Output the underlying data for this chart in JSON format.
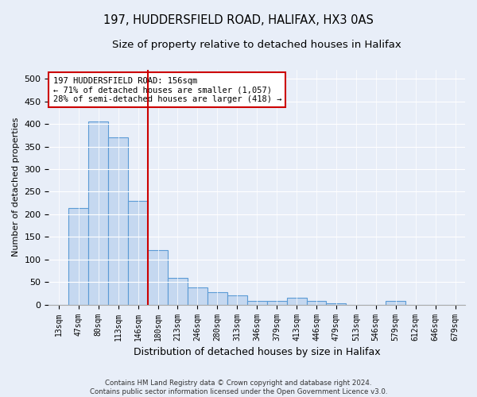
{
  "title_line1": "197, HUDDERSFIELD ROAD, HALIFAX, HX3 0AS",
  "title_line2": "Size of property relative to detached houses in Halifax",
  "xlabel": "Distribution of detached houses by size in Halifax",
  "ylabel": "Number of detached properties",
  "categories": [
    "13sqm",
    "47sqm",
    "80sqm",
    "113sqm",
    "146sqm",
    "180sqm",
    "213sqm",
    "246sqm",
    "280sqm",
    "313sqm",
    "346sqm",
    "379sqm",
    "413sqm",
    "446sqm",
    "479sqm",
    "513sqm",
    "546sqm",
    "579sqm",
    "612sqm",
    "646sqm",
    "679sqm"
  ],
  "values": [
    0,
    213,
    405,
    370,
    230,
    120,
    60,
    38,
    28,
    20,
    8,
    8,
    15,
    8,
    3,
    0,
    0,
    8,
    0,
    0,
    0
  ],
  "bar_color": "#c5d8f0",
  "bar_edge_color": "#5b9bd5",
  "vline_color": "#cc0000",
  "vline_index": 4.5,
  "annotation_text": "197 HUDDERSFIELD ROAD: 156sqm\n← 71% of detached houses are smaller (1,057)\n28% of semi-detached houses are larger (418) →",
  "annotation_box_color": "#cc0000",
  "ylim": [
    0,
    520
  ],
  "yticks": [
    0,
    50,
    100,
    150,
    200,
    250,
    300,
    350,
    400,
    450,
    500
  ],
  "footnote": "Contains HM Land Registry data © Crown copyright and database right 2024.\nContains public sector information licensed under the Open Government Licence v3.0.",
  "bg_color": "#e8eef8",
  "plot_bg_color": "#e8eef8",
  "title1_fontsize": 10.5,
  "title2_fontsize": 9.5
}
